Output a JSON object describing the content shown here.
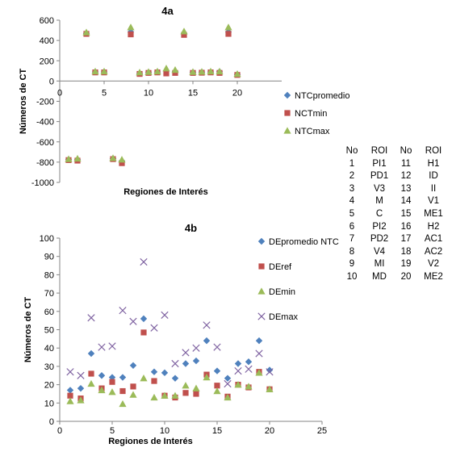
{
  "chart_data": [
    {
      "type": "scatter",
      "title": "4a",
      "xlabel": "Regiones de Interés",
      "ylabel": "Números de CT",
      "xlim": [
        0,
        25
      ],
      "ylim": [
        -1000,
        600
      ],
      "xticks": [
        0,
        5,
        10,
        15,
        20
      ],
      "yticks": [
        600,
        400,
        200,
        0,
        -200,
        -400,
        -600,
        -800,
        -1000
      ],
      "grid": false,
      "legend_position": "right",
      "series": [
        {
          "name": "NTCpromedio",
          "color": "#4f81bd",
          "marker": "diamond",
          "x": [
            1,
            2,
            3,
            4,
            5,
            6,
            7,
            8,
            9,
            10,
            11,
            12,
            13,
            14,
            15,
            16,
            17,
            18,
            19,
            20
          ],
          "y": [
            -775,
            -775,
            470,
            90,
            90,
            -765,
            -790,
            485,
            75,
            85,
            90,
            100,
            95,
            470,
            85,
            88,
            90,
            92,
            485,
            65
          ]
        },
        {
          "name": "NCTmin",
          "color": "#c0504d",
          "marker": "square",
          "x": [
            1,
            2,
            3,
            4,
            5,
            6,
            7,
            8,
            9,
            10,
            11,
            12,
            13,
            14,
            15,
            16,
            17,
            18,
            19,
            20
          ],
          "y": [
            -780,
            -785,
            465,
            85,
            85,
            -770,
            -810,
            460,
            70,
            80,
            85,
            75,
            80,
            455,
            80,
            82,
            85,
            80,
            465,
            60
          ]
        },
        {
          "name": "NTCmax",
          "color": "#9bbb59",
          "marker": "triangle",
          "x": [
            1,
            2,
            3,
            4,
            5,
            6,
            7,
            8,
            9,
            10,
            11,
            12,
            13,
            14,
            15,
            16,
            17,
            18,
            19,
            20
          ],
          "y": [
            -770,
            -765,
            480,
            95,
            95,
            -760,
            -775,
            530,
            85,
            90,
            95,
            125,
            110,
            490,
            90,
            92,
            95,
            95,
            530,
            70
          ]
        }
      ]
    },
    {
      "type": "scatter",
      "title": "4b",
      "xlabel": "Regiones de Interés",
      "ylabel": "Números de CT",
      "xlim": [
        0,
        25
      ],
      "ylim": [
        0,
        100
      ],
      "xticks": [
        0,
        5,
        10,
        15,
        20,
        25
      ],
      "yticks": [
        100,
        90,
        80,
        70,
        60,
        50,
        40,
        30,
        20,
        10,
        0
      ],
      "grid": false,
      "legend_position": "right",
      "series": [
        {
          "name": "DEpromedio NTC",
          "color": "#4f81bd",
          "marker": "diamond",
          "x": [
            1,
            2,
            3,
            4,
            5,
            6,
            7,
            8,
            9,
            10,
            11,
            12,
            13,
            14,
            15,
            16,
            17,
            18,
            19,
            20
          ],
          "y": [
            17,
            18,
            37,
            25,
            24,
            24,
            30.5,
            56,
            27,
            26.5,
            23.5,
            31.5,
            33,
            44,
            27.5,
            23.5,
            31.5,
            32.5,
            44,
            28
          ]
        },
        {
          "name": "DEref",
          "color": "#c0504d",
          "marker": "square",
          "x": [
            1,
            2,
            3,
            4,
            5,
            6,
            7,
            8,
            9,
            10,
            11,
            12,
            13,
            14,
            15,
            16,
            17,
            18,
            19,
            20
          ],
          "y": [
            14,
            12.5,
            26,
            18,
            21.5,
            16.5,
            19,
            48.5,
            22,
            14,
            13,
            15.5,
            15,
            25.5,
            19.5,
            13.5,
            20,
            18.5,
            27,
            17.5
          ]
        },
        {
          "name": "DEmin",
          "color": "#9bbb59",
          "marker": "triangle",
          "x": [
            1,
            2,
            3,
            4,
            5,
            6,
            7,
            8,
            9,
            10,
            11,
            12,
            13,
            14,
            15,
            16,
            17,
            18,
            19,
            20
          ],
          "y": [
            11,
            11.5,
            20.5,
            17,
            16,
            9.5,
            14.5,
            23.5,
            13,
            14,
            14,
            19.5,
            18,
            24,
            16.5,
            13,
            20,
            19,
            26.5,
            17.5
          ]
        },
        {
          "name": "DEmax",
          "color": "#8064a2",
          "marker": "x",
          "x": [
            1,
            2,
            3,
            4,
            5,
            6,
            7,
            8,
            9,
            10,
            11,
            12,
            13,
            14,
            15,
            16,
            17,
            18,
            19,
            20
          ],
          "y": [
            27,
            25,
            56.5,
            40.5,
            41,
            60.5,
            54.5,
            87,
            51,
            58,
            31.5,
            37.5,
            40,
            52.5,
            40.5,
            20.5,
            27.5,
            28.5,
            37,
            27
          ]
        }
      ]
    }
  ],
  "roi_table": {
    "headers": [
      "No",
      "ROI",
      "No",
      "ROI"
    ],
    "rows": [
      [
        "1",
        "PI1",
        "11",
        "H1"
      ],
      [
        "2",
        "PD1",
        "12",
        "ID"
      ],
      [
        "3",
        "V3",
        "13",
        "II"
      ],
      [
        "4",
        "M",
        "14",
        "V1"
      ],
      [
        "5",
        "C",
        "15",
        "ME1"
      ],
      [
        "6",
        "PI2",
        "16",
        "H2"
      ],
      [
        "7",
        "PD2",
        "17",
        "AC1"
      ],
      [
        "8",
        "V4",
        "18",
        "AC2"
      ],
      [
        "9",
        "MI",
        "19",
        "V2"
      ],
      [
        "10",
        "MD",
        "20",
        "ME2"
      ]
    ]
  }
}
